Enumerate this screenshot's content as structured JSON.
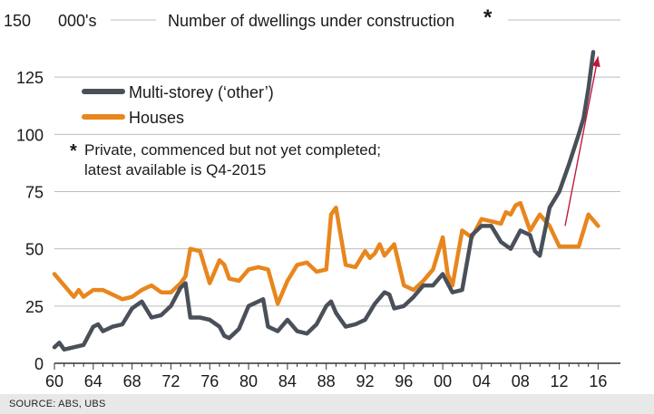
{
  "chart_data": {
    "type": "line",
    "title": "Number of dwellings under construction",
    "title_marker": "*",
    "unit_label": "000's",
    "ylim": [
      0,
      150
    ],
    "y_ticks": [
      "0",
      "25",
      "50",
      "75",
      "100",
      "125",
      "150"
    ],
    "y_tick_values": [
      0,
      25,
      50,
      75,
      100,
      125,
      150
    ],
    "x_ticks": [
      "60",
      "64",
      "68",
      "72",
      "76",
      "80",
      "84",
      "88",
      "92",
      "96",
      "00",
      "04",
      "08",
      "12",
      "16"
    ],
    "x_tick_values": [
      1960,
      1964,
      1968,
      1972,
      1976,
      1980,
      1984,
      1988,
      1992,
      1996,
      2000,
      2004,
      2008,
      2012,
      2016
    ],
    "xlim": [
      1960,
      2016.9
    ],
    "grid": "horizontal",
    "legend_position": "top-left",
    "series": [
      {
        "name": "Multi-storey ('other')",
        "color": "#4a5059",
        "x": [
          1960,
          1960.5,
          1961,
          1962,
          1963,
          1964,
          1964.5,
          1965,
          1966,
          1967,
          1968,
          1969,
          1970,
          1971,
          1972,
          1973,
          1973.5,
          1974,
          1975,
          1976,
          1977,
          1977.5,
          1978,
          1979,
          1980,
          1981,
          1981.5,
          1982,
          1983,
          1984,
          1985,
          1986,
          1987,
          1988,
          1988.5,
          1989,
          1990,
          1991,
          1992,
          1993,
          1994,
          1994.5,
          1995,
          1996,
          1997,
          1998,
          1999,
          2000,
          2001,
          2002,
          2003,
          2004,
          2005,
          2006,
          2007,
          2008,
          2009,
          2009.5,
          2010,
          2011,
          2012,
          2013,
          2014,
          2014.5,
          2015,
          2015.5
        ],
        "values": [
          7,
          9,
          6,
          7,
          8,
          16,
          17,
          14,
          16,
          17,
          24,
          27,
          20,
          21,
          25,
          33,
          35,
          20,
          20,
          19,
          16,
          12,
          11,
          15,
          25,
          27,
          28,
          16,
          14,
          19,
          14,
          13,
          17,
          25,
          27,
          22,
          16,
          17,
          19,
          26,
          31,
          30,
          24,
          25,
          29,
          34,
          34,
          39,
          31,
          32,
          56,
          60,
          60,
          53,
          50,
          58,
          56,
          49,
          47,
          68,
          75,
          87,
          100,
          107,
          120,
          136
        ]
      },
      {
        "name": "Houses",
        "color": "#e8861e",
        "x": [
          1960,
          1961,
          1962,
          1962.5,
          1963,
          1964,
          1965,
          1966,
          1967,
          1968,
          1969,
          1970,
          1971,
          1972,
          1973,
          1973.5,
          1974,
          1975,
          1976,
          1977,
          1977.5,
          1978,
          1979,
          1980,
          1981,
          1982,
          1983,
          1984,
          1985,
          1986,
          1987,
          1988,
          1988.5,
          1989,
          1990,
          1991,
          1992,
          1992.5,
          1993,
          1993.5,
          1994,
          1995,
          1996,
          1997,
          1998,
          1999,
          2000,
          2000.5,
          2001,
          2002,
          2003,
          2004,
          2005,
          2006,
          2006.5,
          2007,
          2007.5,
          2008,
          2009,
          2010,
          2011,
          2012,
          2013,
          2014,
          2015,
          2016
        ],
        "values": [
          39,
          34,
          29,
          32,
          29,
          32,
          32,
          30,
          28,
          29,
          32,
          34,
          31,
          31,
          35,
          38,
          50,
          49,
          35,
          45,
          43,
          37,
          36,
          41,
          42,
          41,
          26,
          36,
          43,
          44,
          40,
          41,
          65,
          68,
          43,
          42,
          49,
          46,
          48,
          52,
          47,
          52,
          34,
          32,
          36,
          41,
          55,
          39,
          34,
          58,
          55,
          63,
          62,
          61,
          66,
          65,
          69,
          70,
          58,
          65,
          60,
          51,
          51,
          51,
          65,
          60
        ]
      }
    ],
    "annotations": [
      {
        "type": "arrow",
        "color": "#c0183c",
        "from": [
          2012.6,
          60
        ],
        "to": [
          2016,
          134
        ]
      }
    ],
    "legend": [
      {
        "label": "Multi-storey (‘other’)",
        "color": "#4a5059"
      },
      {
        "label": "Houses",
        "color": "#e8861e"
      }
    ],
    "note_marker": "*",
    "note_lines": [
      "Private, commenced but not yet completed;",
      "latest available is Q4-2015"
    ]
  },
  "source": "SOURCE: ABS, UBS"
}
